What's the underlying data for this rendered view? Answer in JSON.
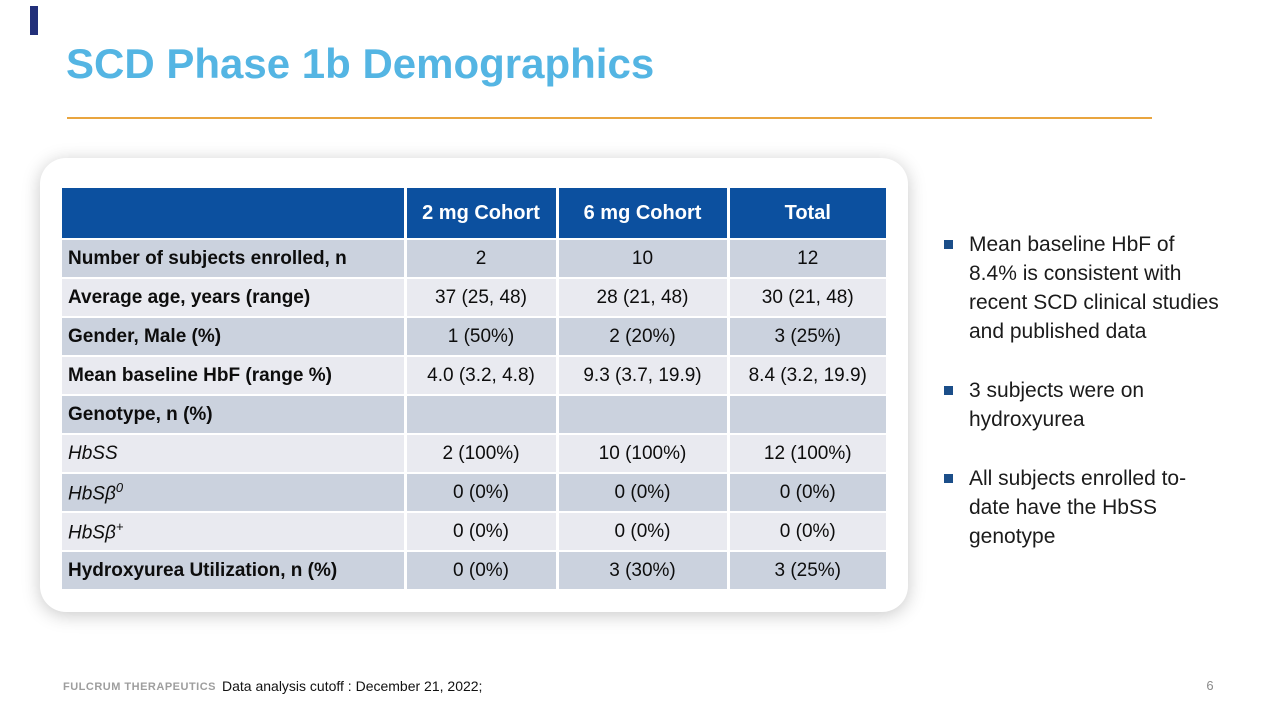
{
  "slide": {
    "title": "SCD Phase 1b Demographics",
    "page_number": "6",
    "footer_logo": "FULCRUM THERAPEUTICS",
    "footer_note": "Data analysis cutoff : December 21, 2022;"
  },
  "colors": {
    "title_blue": "#54B5E3",
    "divider_orange": "#E9A53F",
    "table_header_blue": "#0C509F",
    "row_dark": "#CBD2DE",
    "row_light": "#E9EAF0",
    "bullet_navy": "#1B4E89",
    "accent_bar_navy": "#22307A"
  },
  "table": {
    "headers": {
      "col1": "2 mg Cohort",
      "col2": "6 mg Cohort",
      "col3": "Total"
    },
    "rows": [
      {
        "label": "Number of subjects enrolled, n",
        "values": [
          "2",
          "10",
          "12"
        ]
      },
      {
        "label": "Average age, years (range)",
        "values": [
          "37 (25, 48)",
          "28 (21, 48)",
          "30 (21, 48)"
        ]
      },
      {
        "label": "Gender, Male (%)",
        "values": [
          "1 (50%)",
          "2 (20%)",
          "3 (25%)"
        ]
      },
      {
        "label": "Mean baseline HbF (range %)",
        "values": [
          "4.0 (3.2, 4.8)",
          "9.3 (3.7, 19.9)",
          "8.4 (3.2, 19.9)"
        ]
      },
      {
        "label": "Genotype, n (%)",
        "values": [
          "",
          "",
          ""
        ]
      },
      {
        "label": "HbSS",
        "values": [
          "2 (100%)",
          "10 (100%)",
          "12 (100%)"
        ]
      },
      {
        "label": "HbSβ",
        "sup": "0",
        "values": [
          "0 (0%)",
          "0 (0%)",
          "0 (0%)"
        ]
      },
      {
        "label": "HbSβ",
        "sup": "+",
        "values": [
          "0 (0%)",
          "0 (0%)",
          "0 (0%)"
        ]
      },
      {
        "label": "Hydroxyurea Utilization, n (%)",
        "values": [
          "0 (0%)",
          "3 (30%)",
          "3 (25%)"
        ]
      }
    ]
  },
  "bullets": {
    "items": [
      {
        "text": "Mean baseline HbF of\n8.4% is consistent with\nrecent SCD clinical studies\nand published data"
      },
      {
        "text": "3 subjects were on\nhydroxyurea"
      },
      {
        "text": "All subjects enrolled to-\ndate have the HbSS\ngenotype"
      }
    ]
  }
}
